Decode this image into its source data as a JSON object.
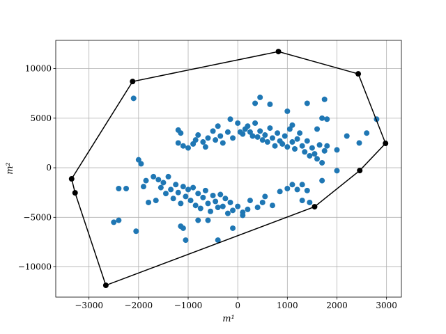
{
  "chart_data": {
    "type": "scatter",
    "xlabel": "m¹",
    "ylabel": "m²",
    "xlim": [
      -3670,
      3300
    ],
    "ylim": [
      -13050,
      12850
    ],
    "xticks": [
      {
        "value": -3000,
        "label": "−3000"
      },
      {
        "value": -2000,
        "label": "−2000"
      },
      {
        "value": -1000,
        "label": "−1000"
      },
      0,
      1000,
      2000,
      3000
    ],
    "yticks": [
      {
        "value": -10000,
        "label": "−10000"
      },
      {
        "value": -5000,
        "label": "−5000"
      },
      0,
      5000,
      10000
    ],
    "grid": true,
    "points": {
      "color": "#1f77b4",
      "x": [
        -1200,
        -1150,
        -1200,
        -1100,
        -1000,
        -900,
        -850,
        -800,
        -700,
        -650,
        -600,
        -500,
        -450,
        -400,
        -350,
        -300,
        -200,
        -150,
        -100,
        0,
        50,
        100,
        150,
        200,
        250,
        300,
        350,
        400,
        450,
        500,
        550,
        600,
        650,
        700,
        750,
        800,
        850,
        900,
        950,
        1000,
        1050,
        1100,
        1150,
        1200,
        1250,
        1300,
        1350,
        1400,
        1450,
        1500,
        1550,
        1600,
        1650,
        1700,
        1750,
        1800,
        1100,
        1600,
        1800,
        -1700,
        -1600,
        -1550,
        -1500,
        -1450,
        -1400,
        -1350,
        -1300,
        -1250,
        -1200,
        -1150,
        -1100,
        -1050,
        -1000,
        -950,
        -900,
        -850,
        -800,
        -750,
        -700,
        -650,
        -600,
        -550,
        -500,
        -450,
        -400,
        -350,
        -300,
        -250,
        -200,
        -150,
        -100,
        0,
        100,
        250,
        400,
        550,
        700,
        850,
        1000,
        1100,
        -1650,
        -1800,
        -1900,
        -1150,
        -1100,
        -800,
        -600,
        -100,
        500,
        1200,
        -2100,
        -2000,
        -1950,
        -1850,
        -2400,
        -2250,
        -2400,
        -2500,
        -2050,
        -1050,
        -400,
        350,
        450,
        650,
        1000,
        1400,
        1750,
        1700,
        2800,
        2600,
        2200,
        2450,
        2000,
        2000,
        1700,
        1300,
        1400,
        1300,
        1450,
        200,
        100
      ],
      "y": [
        3800,
        3500,
        2500,
        2200,
        2000,
        2400,
        2800,
        3300,
        2600,
        2100,
        3000,
        3700,
        2800,
        4200,
        3200,
        2500,
        3600,
        4900,
        3000,
        4500,
        3600,
        3400,
        3900,
        4200,
        3600,
        3200,
        4500,
        3100,
        3700,
        2800,
        3300,
        2600,
        4000,
        3000,
        2200,
        3500,
        2700,
        2400,
        3200,
        2100,
        3900,
        2600,
        1900,
        2900,
        3500,
        2200,
        1600,
        2700,
        1200,
        2000,
        1400,
        900,
        2300,
        500,
        1700,
        2200,
        4300,
        3900,
        4900,
        -900,
        -1200,
        -2000,
        -1500,
        -2600,
        -900,
        -2200,
        -3100,
        -1700,
        -2500,
        -3600,
        -1900,
        -2900,
        -2200,
        -3300,
        -2000,
        -3800,
        -2600,
        -4100,
        -3000,
        -2300,
        -3600,
        -4400,
        -2800,
        -3400,
        -4000,
        -2700,
        -3900,
        -3100,
        -4600,
        -3500,
        -4300,
        -3900,
        -4500,
        -3300,
        -4000,
        -2900,
        -3800,
        -2400,
        -2100,
        -1700,
        -3300,
        -3500,
        -1900,
        -5900,
        -6100,
        -5300,
        -5300,
        -6100,
        -3500,
        -2200,
        7000,
        800,
        400,
        -1300,
        -2100,
        -2100,
        -5300,
        -5500,
        -6400,
        -7300,
        -7300,
        6500,
        7100,
        6400,
        5700,
        6500,
        6900,
        5000,
        4900,
        3500,
        3200,
        2500,
        1800,
        -300,
        -1300,
        -1700,
        -2300,
        -3300,
        -3500,
        -4200,
        -4800
      ]
    },
    "hull": {
      "color": "#000000",
      "x": [
        -3350,
        -3280,
        -2660,
        1550,
        2460,
        2980,
        2430,
        820,
        -2120
      ],
      "y": [
        -1120,
        -2530,
        -11860,
        -3930,
        -280,
        2460,
        9470,
        11720,
        8700
      ]
    }
  }
}
